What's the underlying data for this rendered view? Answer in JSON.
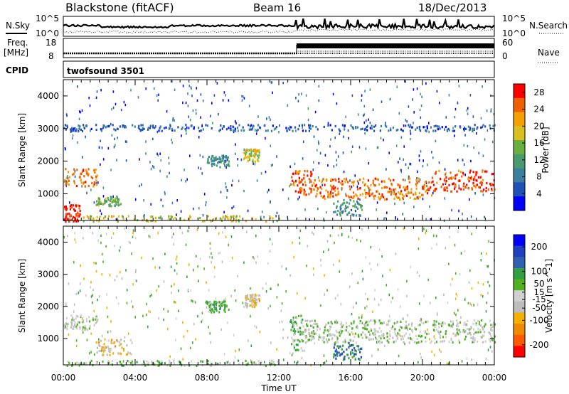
{
  "header": {
    "station": "Blackstone (fitACF)",
    "beam": "Beam 16",
    "date": "18/Dec/2013"
  },
  "params": {
    "nsky_label": "N.Sky",
    "nsearch_label": "N.Search",
    "freq_label_1": "Freq.",
    "freq_label_2": "[MHz]",
    "nave_label": "Nave",
    "cpid_label": "CPID",
    "cpid_value": "twofsound 3501",
    "noise_ticks": [
      "10^5",
      "10^0"
    ],
    "freq_ticks": [
      "18",
      "8"
    ],
    "nave_ticks": [
      "60",
      "0"
    ]
  },
  "xaxis": {
    "label": "Time UT",
    "ticks": [
      "00:00",
      "04:00",
      "08:00",
      "12:00",
      "16:00",
      "20:00",
      "00:00"
    ]
  },
  "colors": {
    "power": [
      "#0000ff",
      "#2050b8",
      "#3a7fa0",
      "#4a9a70",
      "#6ab040",
      "#d8c020",
      "#f5a000",
      "#f06000",
      "#ff0000"
    ],
    "velocity": [
      "#ff0000",
      "#ff5a00",
      "#f08a00",
      "#f5b000",
      "#bdbdbd",
      "#d0d0d0",
      "#50b020",
      "#30a040",
      "#3060b0",
      "#2040c0",
      "#0000ff"
    ]
  },
  "chart_data": [
    {
      "type": "heatmap",
      "title": "Power",
      "ylabel": "Slant Range [km]",
      "xlabel": "",
      "xlim": [
        "00:00",
        "24:00"
      ],
      "ylim": [
        180,
        4500
      ],
      "yticks": [
        1000,
        2000,
        3000,
        4000
      ],
      "colorbar": {
        "label": "Power [dB]",
        "ticks": [
          4,
          8,
          12,
          16,
          20,
          24,
          28
        ],
        "range": [
          0,
          30
        ]
      },
      "regions": [
        {
          "t": [
            0.0,
            0.9
          ],
          "r": [
            180,
            700
          ],
          "value": 28
        },
        {
          "t": [
            0.0,
            1.9
          ],
          "r": [
            1250,
            1800
          ],
          "value": 24
        },
        {
          "t": [
            1.8,
            3.2
          ],
          "r": [
            650,
            950
          ],
          "value": 14
        },
        {
          "t": [
            1.0,
            12.0
          ],
          "r": [
            180,
            350
          ],
          "value": 18
        },
        {
          "t": [
            7.9,
            9.2
          ],
          "r": [
            1850,
            2200
          ],
          "value": 10
        },
        {
          "t": [
            10.0,
            10.9
          ],
          "r": [
            2000,
            2400
          ],
          "value": 18
        },
        {
          "t": [
            12.6,
            13.8
          ],
          "r": [
            1000,
            1750
          ],
          "value": 26
        },
        {
          "t": [
            13.8,
            20.5
          ],
          "r": [
            850,
            1500
          ],
          "value": 24
        },
        {
          "t": [
            20.5,
            24.0
          ],
          "r": [
            1100,
            1750
          ],
          "value": 26
        },
        {
          "t": [
            15.0,
            16.6
          ],
          "r": [
            350,
            900
          ],
          "value": 10
        },
        {
          "t": [
            0.0,
            24.0
          ],
          "r": [
            2950,
            3150
          ],
          "value": 6
        }
      ]
    },
    {
      "type": "heatmap",
      "title": "Velocity",
      "ylabel": "Slant Range [km]",
      "xlabel": "Time UT",
      "xlim": [
        "00:00",
        "24:00"
      ],
      "ylim": [
        180,
        4500
      ],
      "yticks": [
        1000,
        2000,
        3000,
        4000
      ],
      "colorbar": {
        "label": "Velocity [m s^-1]",
        "ticks": [
          200,
          100,
          50,
          15,
          -15,
          -50,
          -100,
          -200
        ],
        "range": [
          -250,
          250
        ]
      },
      "regions": [
        {
          "t": [
            0.0,
            1.9
          ],
          "r": [
            1300,
            1800
          ],
          "value": 0
        },
        {
          "t": [
            1.8,
            3.8
          ],
          "r": [
            500,
            1000
          ],
          "value": -60
        },
        {
          "t": [
            0.0,
            12.0
          ],
          "r": [
            180,
            350
          ],
          "value": 30
        },
        {
          "t": [
            7.9,
            9.2
          ],
          "r": [
            1850,
            2200
          ],
          "value": 60
        },
        {
          "t": [
            10.0,
            10.9
          ],
          "r": [
            2000,
            2400
          ],
          "value": -60
        },
        {
          "t": [
            12.6,
            13.3
          ],
          "r": [
            650,
            1750
          ],
          "value": 40
        },
        {
          "t": [
            13.3,
            24.0
          ],
          "r": [
            900,
            1600
          ],
          "value": 0
        },
        {
          "t": [
            15.0,
            16.6
          ],
          "r": [
            350,
            900
          ],
          "value": 120
        }
      ]
    }
  ]
}
